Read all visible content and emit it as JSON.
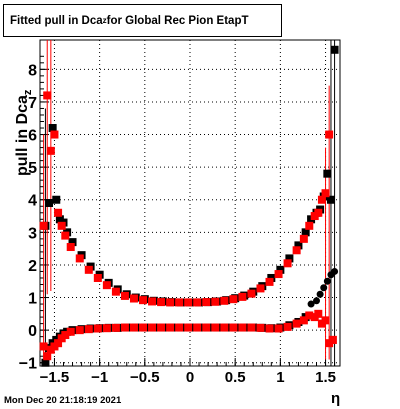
{
  "title": {
    "prefix": "Fitted pull in Dca",
    "sub": "z",
    "suffix": " for Global Rec Pion EtapT"
  },
  "timestamp": "Mon Dec 20 21:18:19 2021",
  "axes": {
    "ylabel_prefix": "pull in Dca",
    "ylabel_sub": "z",
    "xlabel": "η"
  },
  "colors": {
    "black_series": "#000000",
    "red_series": "#ff0000",
    "grid": "#000000"
  },
  "chart_data": {
    "type": "scatter",
    "xlim": [
      -1.66,
      1.66
    ],
    "ylim": [
      -1.1,
      8.9
    ],
    "grid": true,
    "xticks": [
      -1.5,
      -1,
      -0.5,
      0,
      0.5,
      1,
      1.5
    ],
    "xtick_labels": [
      "−1.5",
      "−1",
      "−0.5",
      "0",
      "0.5",
      "1",
      "1.5"
    ],
    "yticks": [
      -1,
      0,
      1,
      2,
      3,
      4,
      5,
      6,
      7,
      8
    ],
    "ytick_labels": [
      "−1",
      "0",
      "1",
      "2",
      "3",
      "4",
      "5",
      "6",
      "7",
      "8"
    ],
    "series": [
      {
        "color": "black",
        "x": [
          -1.6,
          -1.56,
          -1.52,
          -1.48,
          -1.44,
          -1.4,
          -1.36,
          -1.3,
          -1.2,
          -1.1,
          -1.0,
          -0.9,
          -0.8,
          -0.7,
          -0.6,
          -0.5,
          -0.4,
          -0.3,
          -0.2,
          -0.1,
          0.0,
          0.1,
          0.2,
          0.3,
          0.4,
          0.5,
          0.6,
          0.7,
          0.8,
          0.9,
          1.0,
          1.1,
          1.2,
          1.28,
          1.34,
          1.4,
          1.44,
          1.48,
          1.52,
          1.56,
          1.6
        ],
        "y": [
          3.2,
          3.9,
          6.2,
          4.0,
          3.4,
          3.3,
          3.0,
          2.7,
          2.3,
          1.95,
          1.7,
          1.45,
          1.25,
          1.1,
          1.0,
          0.95,
          0.9,
          0.88,
          0.86,
          0.85,
          0.85,
          0.85,
          0.86,
          0.88,
          0.92,
          0.98,
          1.06,
          1.18,
          1.35,
          1.6,
          1.85,
          2.2,
          2.6,
          3.0,
          3.4,
          3.6,
          3.7,
          4.1,
          4.8,
          4.0,
          8.6
        ],
        "y2": [
          -1.0,
          -0.55,
          -0.4,
          -0.3,
          -0.2,
          -0.1,
          -0.05,
          0.0,
          0.03,
          0.05,
          0.06,
          0.07,
          0.07,
          0.08,
          0.08,
          0.08,
          0.08,
          0.08,
          0.08,
          0.08,
          0.08,
          0.08,
          0.08,
          0.08,
          0.08,
          0.08,
          0.08,
          0.08,
          0.07,
          0.06,
          0.08,
          0.15,
          0.25,
          0.4,
          0.8,
          0.9,
          1.1,
          1.3,
          1.5,
          1.7,
          1.8
        ]
      },
      {
        "color": "red",
        "x": [
          -1.62,
          -1.58,
          -1.54,
          -1.5,
          -1.46,
          -1.42,
          -1.38,
          -1.32,
          -1.22,
          -1.12,
          -1.02,
          -0.92,
          -0.82,
          -0.72,
          -0.62,
          -0.52,
          -0.42,
          -0.32,
          -0.22,
          -0.12,
          -0.02,
          0.08,
          0.18,
          0.28,
          0.38,
          0.48,
          0.58,
          0.68,
          0.78,
          0.88,
          0.98,
          1.08,
          1.18,
          1.26,
          1.32,
          1.38,
          1.42,
          1.46,
          1.5,
          1.54,
          1.58
        ],
        "y": [
          3.2,
          7.2,
          5.5,
          6.0,
          3.6,
          3.2,
          2.9,
          2.55,
          2.2,
          1.85,
          1.6,
          1.38,
          1.18,
          1.05,
          0.97,
          0.92,
          0.88,
          0.86,
          0.85,
          0.85,
          0.85,
          0.85,
          0.86,
          0.87,
          0.9,
          0.95,
          1.02,
          1.12,
          1.28,
          1.48,
          1.72,
          2.05,
          2.45,
          2.8,
          3.2,
          3.5,
          3.6,
          4.0,
          4.2,
          6.0,
          -0.3
        ],
        "y2": [
          -0.5,
          -0.8,
          -0.6,
          -0.5,
          -0.4,
          -0.25,
          -0.15,
          -0.05,
          0.0,
          0.03,
          0.05,
          0.06,
          0.07,
          0.08,
          0.08,
          0.08,
          0.08,
          0.08,
          0.08,
          0.08,
          0.08,
          0.08,
          0.08,
          0.08,
          0.08,
          0.08,
          0.08,
          0.08,
          0.07,
          0.05,
          0.05,
          0.1,
          0.2,
          0.3,
          0.45,
          0.4,
          0.5,
          0.2,
          0.3,
          -0.4,
          -0.3
        ]
      }
    ],
    "error_bars": [
      {
        "series": "red",
        "x": -1.58,
        "ylo": 1.1,
        "yhi": 8.9
      },
      {
        "series": "red",
        "x": -1.54,
        "ylo": 1.2,
        "yhi": 8.9
      },
      {
        "series": "red",
        "x": -1.62,
        "ylo": -0.9,
        "yhi": 6.0
      },
      {
        "series": "black",
        "x": -1.6,
        "ylo": -1.1,
        "yhi": 6.8
      },
      {
        "series": "red",
        "x": 1.54,
        "ylo": -0.9,
        "yhi": 7.5
      },
      {
        "series": "red",
        "x": 1.5,
        "ylo": -0.9,
        "yhi": 5.6
      },
      {
        "series": "black",
        "x": 1.56,
        "ylo": -1.1,
        "yhi": 8.9
      },
      {
        "series": "black",
        "x": 1.6,
        "ylo": -1.1,
        "yhi": 8.9
      }
    ]
  }
}
